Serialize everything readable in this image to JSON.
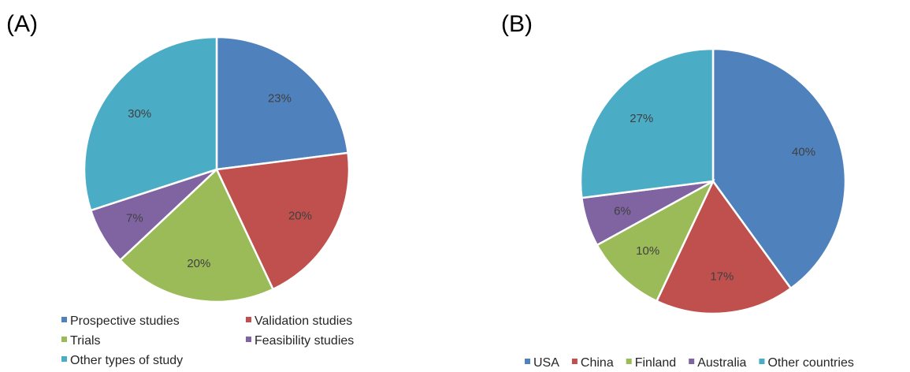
{
  "chart_data": [
    {
      "type": "pie",
      "panel_label": "(A)",
      "categories": [
        "Prospective studies",
        "Validation studies",
        "Trials",
        "Feasibility studies",
        "Other types of study"
      ],
      "values": [
        23,
        20,
        20,
        7,
        30
      ],
      "value_labels": [
        "23%",
        "20%",
        "20%",
        "7%",
        "30%"
      ],
      "colors": [
        "#4F81BD",
        "#C0504D",
        "#9BBB59",
        "#8064A2",
        "#4BACC6"
      ],
      "legend_position": "bottom",
      "title": ""
    },
    {
      "type": "pie",
      "panel_label": "(B)",
      "categories": [
        "USA",
        "China",
        "Finland",
        "Australia",
        "Other countries"
      ],
      "values": [
        40,
        17,
        10,
        6,
        27
      ],
      "value_labels": [
        "40%",
        "17%",
        "10%",
        "6%",
        "27%"
      ],
      "colors": [
        "#4F81BD",
        "#C0504D",
        "#9BBB59",
        "#8064A2",
        "#4BACC6"
      ],
      "legend_position": "bottom",
      "title": ""
    }
  ]
}
